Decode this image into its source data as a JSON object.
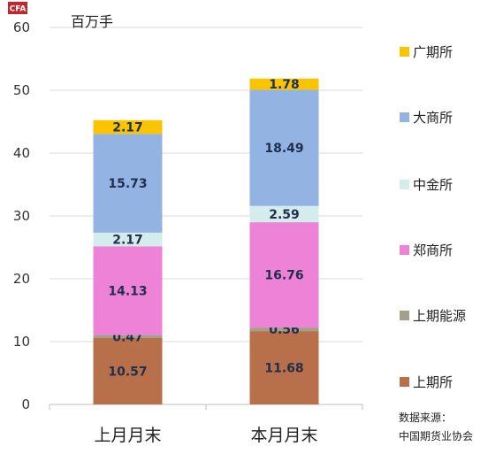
{
  "logo": {
    "text": "CFA",
    "color": "#c0282d"
  },
  "source_lines": [
    "数据来源：",
    "中国期货业协会"
  ],
  "chart_data": {
    "type": "bar",
    "stacked": true,
    "title": "",
    "xlabel": "",
    "ylabel": "百万手",
    "ylim": [
      0,
      60
    ],
    "yticks": [
      0,
      10,
      20,
      30,
      40,
      50,
      60
    ],
    "grid": true,
    "legend_position": "right",
    "categories": [
      "上月月末",
      "本月月末"
    ],
    "series": [
      {
        "name": "上期所",
        "color": "#b8704b",
        "values": [
          10.57,
          11.68
        ]
      },
      {
        "name": "上期能源",
        "color": "#a39f88",
        "values": [
          0.47,
          0.56
        ]
      },
      {
        "name": "郑商所",
        "color": "#ee82d6",
        "values": [
          14.13,
          16.76
        ]
      },
      {
        "name": "中金所",
        "color": "#d4ecec",
        "values": [
          2.17,
          2.59
        ]
      },
      {
        "name": "大商所",
        "color": "#93b4e2",
        "values": [
          15.73,
          18.49
        ]
      },
      {
        "name": "广期所",
        "color": "#fbc400",
        "values": [
          2.17,
          1.78
        ]
      }
    ]
  }
}
